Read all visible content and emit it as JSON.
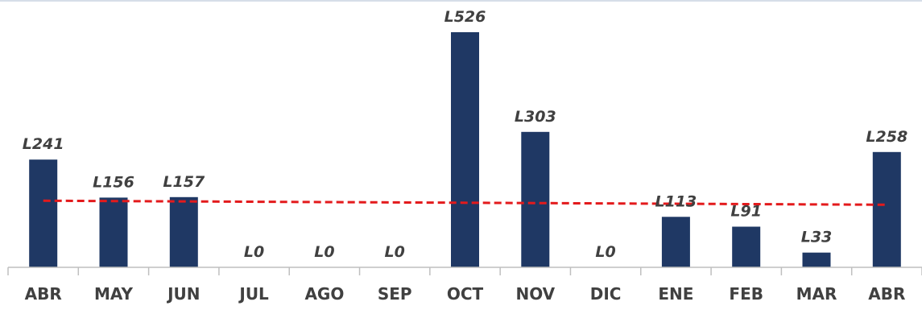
{
  "chart_data": {
    "type": "bar",
    "categories": [
      "ABR",
      "MAY",
      "JUN",
      "JUL",
      "AGO",
      "SEP",
      "OCT",
      "NOV",
      "DIC",
      "ENE",
      "FEB",
      "MAR",
      "ABR"
    ],
    "values": [
      241,
      156,
      157,
      0,
      0,
      0,
      526,
      303,
      0,
      113,
      91,
      33,
      258
    ],
    "data_labels": [
      "L241",
      "L156",
      "L157",
      "L0",
      "L0",
      "L0",
      "L526",
      "L303",
      "L0",
      "L113",
      "L91",
      "L33",
      "L258"
    ],
    "trendline": {
      "type": "linear",
      "style": "dashed",
      "color": "#e31a1c"
    },
    "title": "",
    "xlabel": "",
    "ylabel": "",
    "ylim": [
      0,
      526
    ],
    "grid": false,
    "legend": "none",
    "colors": {
      "bar": "#1f3864",
      "trend": "#e31a1c",
      "axis": "#bfbfbf",
      "label": "#404040"
    }
  }
}
